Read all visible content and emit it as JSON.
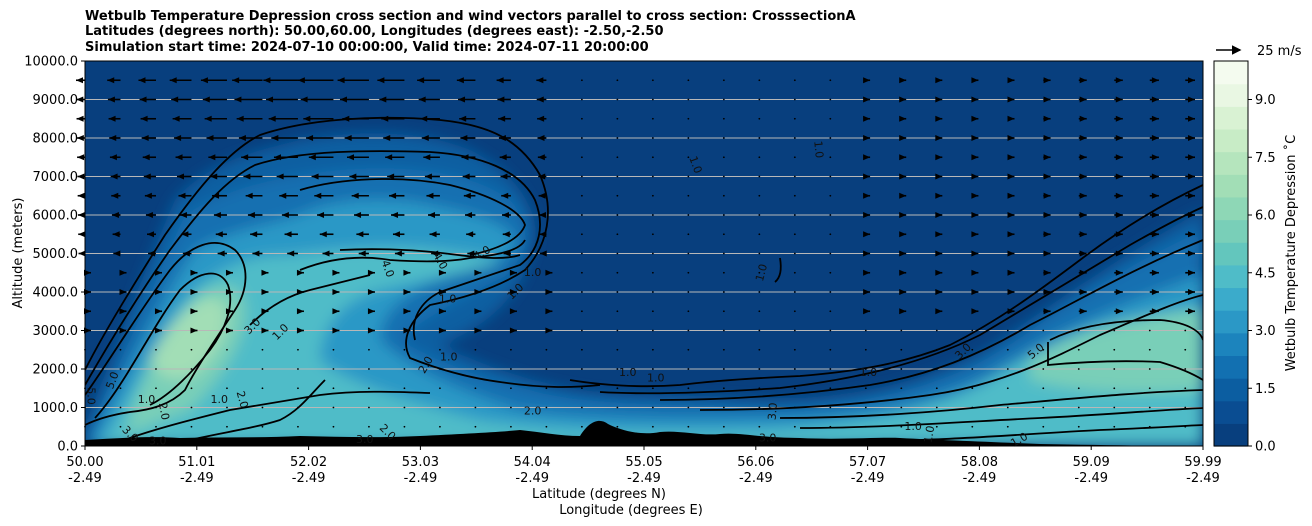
{
  "chart_data": {
    "type": "contour",
    "title_lines": [
      "Wetbulb Temperature Depression cross section and wind vectors parallel to cross section: CrosssectionA",
      "Latitudes (degrees north): 50.00,60.00, Longitudes (degrees east): -2.50,-2.50",
      "Simulation start time: 2024-07-10 00:00:00, Valid time: 2024-07-11 20:00:00"
    ],
    "ylabel": "Altitude (meters)",
    "xlabel_lines": [
      "Latitude (degrees N)",
      "Longitude (degrees E)"
    ],
    "ylim": [
      0,
      10000
    ],
    "y_ticks": [
      "0.0",
      "1000.0",
      "2000.0",
      "3000.0",
      "4000.0",
      "5000.0",
      "6000.0",
      "7000.0",
      "8000.0",
      "9000.0",
      "10000.0"
    ],
    "x_ticks": [
      {
        "lat": "50.00",
        "lon": "-2.49"
      },
      {
        "lat": "51.01",
        "lon": "-2.49"
      },
      {
        "lat": "52.02",
        "lon": "-2.49"
      },
      {
        "lat": "53.03",
        "lon": "-2.49"
      },
      {
        "lat": "54.04",
        "lon": "-2.49"
      },
      {
        "lat": "55.05",
        "lon": "-2.49"
      },
      {
        "lat": "56.06",
        "lon": "-2.49"
      },
      {
        "lat": "57.07",
        "lon": "-2.49"
      },
      {
        "lat": "58.08",
        "lon": "-2.49"
      },
      {
        "lat": "59.09",
        "lon": "-2.49"
      },
      {
        "lat": "59.99",
        "lon": "-2.49"
      }
    ],
    "colorbar": {
      "label": "Wetbulb Temperature Depression $^\\circ$C",
      "label_display": "Wetbulb Temperature Depression ˚C",
      "range": [
        0,
        10
      ],
      "ticks": [
        "0.0",
        "1.5",
        "3.0",
        "4.5",
        "6.0",
        "7.5",
        "9.0"
      ],
      "colors": [
        "#083f7e",
        "#0a4d92",
        "#0c5ea1",
        "#1270b1",
        "#1c84bd",
        "#2b98c6",
        "#3babcb",
        "#4fbcc8",
        "#63c6bd",
        "#79cfb8",
        "#8ed7b6",
        "#a2deb6",
        "#b5e5bd",
        "#c8ecc6",
        "#d9f2d3",
        "#e9f7e3",
        "#f4fbef"
      ]
    },
    "quiver_key": {
      "label": "25 m/s",
      "value_ms": 25
    },
    "contour_levels": [
      "1.0",
      "2.0",
      "3.0",
      "4.0",
      "5.0"
    ],
    "contour_labels": [
      {
        "text": "1.0",
        "lat": 50.55,
        "alt": 1200,
        "angle": 0
      },
      {
        "text": "1.0",
        "lat": 51.2,
        "alt": 1200,
        "angle": 0
      },
      {
        "text": "2.0",
        "lat": 50.7,
        "alt": 900,
        "angle": 80
      },
      {
        "text": "5.0",
        "lat": 50.25,
        "alt": 1700,
        "angle": -70
      },
      {
        "text": "5.0",
        "lat": 50.05,
        "alt": 1300,
        "angle": 90
      },
      {
        "text": "3.0",
        "lat": 51.5,
        "alt": 3100,
        "angle": -45
      },
      {
        "text": "1.0",
        "lat": 51.75,
        "alt": 2950,
        "angle": -45
      },
      {
        "text": "2.0",
        "lat": 51.4,
        "alt": 1200,
        "angle": 75
      },
      {
        "text": "4.0",
        "lat": 52.7,
        "alt": 4600,
        "angle": 70
      },
      {
        "text": "4.0",
        "lat": 53.17,
        "alt": 4800,
        "angle": 60
      },
      {
        "text": "4.0",
        "lat": 53.55,
        "alt": 5000,
        "angle": -30
      },
      {
        "text": "1.0",
        "lat": 53.24,
        "alt": 3800,
        "angle": 0
      },
      {
        "text": "1.0",
        "lat": 54.0,
        "alt": 4500,
        "angle": 0
      },
      {
        "text": "1.0",
        "lat": 53.85,
        "alt": 4000,
        "angle": -45
      },
      {
        "text": "1.0",
        "lat": 53.25,
        "alt": 2300,
        "angle": 0
      },
      {
        "text": "2.0",
        "lat": 53.05,
        "alt": 2100,
        "angle": -60
      },
      {
        "text": "2.0",
        "lat": 54.0,
        "alt": 900,
        "angle": 0
      },
      {
        "text": "1.0",
        "lat": 54.85,
        "alt": 1900,
        "angle": 0
      },
      {
        "text": "1.0",
        "lat": 55.1,
        "alt": 1750,
        "angle": 0
      },
      {
        "text": "1.0",
        "lat": 55.45,
        "alt": 7300,
        "angle": 70
      },
      {
        "text": "1.0",
        "lat": 56.55,
        "alt": 7700,
        "angle": 85
      },
      {
        "text": "1.0",
        "lat": 56.05,
        "alt": 4500,
        "angle": -75
      },
      {
        "text": "1.0",
        "lat": 57.0,
        "alt": 1900,
        "angle": 0
      },
      {
        "text": "3.0",
        "lat": 56.15,
        "alt": 900,
        "angle": -85
      },
      {
        "text": "3.0",
        "lat": 56.1,
        "alt": 200,
        "angle": 0
      },
      {
        "text": "3.0",
        "lat": 57.85,
        "alt": 2450,
        "angle": -45
      },
      {
        "text": "5.0",
        "lat": 58.5,
        "alt": 2450,
        "angle": -40
      },
      {
        "text": "1.0",
        "lat": 57.4,
        "alt": 500,
        "angle": 0
      },
      {
        "text": "1.0",
        "lat": 57.55,
        "alt": 300,
        "angle": -80
      },
      {
        "text": "1.0",
        "lat": 58.35,
        "alt": 150,
        "angle": -30
      },
      {
        "text": "3.0",
        "lat": 52.5,
        "alt": 150,
        "angle": 0
      },
      {
        "text": "2.0",
        "lat": 52.7,
        "alt": 350,
        "angle": 45
      },
      {
        "text": "3.0",
        "lat": 50.65,
        "alt": 120,
        "angle": 0
      },
      {
        "text": "3.0",
        "lat": 50.4,
        "alt": 300,
        "angle": 45
      }
    ]
  }
}
